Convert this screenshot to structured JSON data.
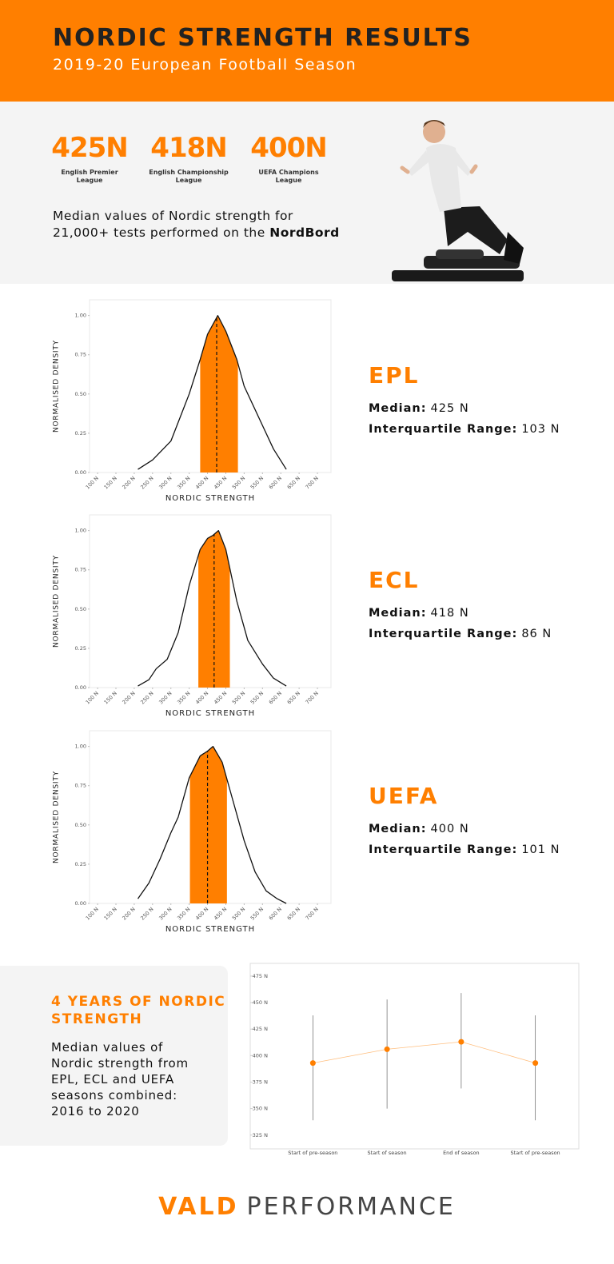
{
  "header": {
    "title": "NORDIC STRENGTH RESULTS",
    "subtitle": "2019-20 European Football Season"
  },
  "stats": [
    {
      "value": "425N",
      "label": "English Premier League"
    },
    {
      "value": "418N",
      "label": "English Championship League"
    },
    {
      "value": "400N",
      "label": "UEFA Champions League"
    }
  ],
  "description": {
    "text": "Median values of Nordic strength for 21,000+ tests performed on the",
    "bold": "NordBord"
  },
  "chart_data": [
    {
      "type": "density",
      "title": "EPL",
      "color": "#ff7f00",
      "x": [
        210,
        250,
        300,
        350,
        380,
        400,
        428,
        450,
        480,
        500,
        550,
        580,
        615
      ],
      "values": [
        0.02,
        0.08,
        0.2,
        0.5,
        0.72,
        0.88,
        1.0,
        0.9,
        0.72,
        0.55,
        0.3,
        0.15,
        0.02
      ],
      "median": 425,
      "q1": 380,
      "q3": 483,
      "median_label": "Median:",
      "median_text": "425 N",
      "iqr_label": "Interquartile Range:",
      "iqr_text": "103 N",
      "xlabel": "NORDIC STRENGTH",
      "ylabel": "NORMALISED DENSITY",
      "xlim": [
        78,
        737
      ],
      "ylim": [
        0,
        1.1
      ],
      "xticks": [
        {
          "value": 100,
          "label": "100 N"
        },
        {
          "value": 150,
          "label": "150 N"
        },
        {
          "value": 200,
          "label": "200 N"
        },
        {
          "value": 250,
          "label": "250 N"
        },
        {
          "value": 300,
          "label": "300 N"
        },
        {
          "value": 350,
          "label": "350 N"
        },
        {
          "value": 400,
          "label": "400 N"
        },
        {
          "value": 450,
          "label": "450 N"
        },
        {
          "value": 500,
          "label": "500 N"
        },
        {
          "value": 550,
          "label": "550 N"
        },
        {
          "value": 600,
          "label": "600 N"
        },
        {
          "value": 650,
          "label": "650 N"
        },
        {
          "value": 700,
          "label": "700 N"
        }
      ],
      "yticks": [
        {
          "value": 0,
          "label": "0.00"
        },
        0.25,
        {
          "value": 0.5,
          "label": "0.50"
        },
        0.75,
        {
          "value": 1,
          "label": "1.00"
        }
      ]
    },
    {
      "type": "density",
      "title": "ECL",
      "color": "#ff7f00",
      "x": [
        210,
        240,
        260,
        290,
        320,
        350,
        380,
        400,
        415,
        430,
        450,
        480,
        510,
        550,
        580,
        615
      ],
      "values": [
        0.01,
        0.05,
        0.12,
        0.18,
        0.35,
        0.65,
        0.88,
        0.95,
        0.97,
        1.0,
        0.88,
        0.55,
        0.3,
        0.15,
        0.06,
        0.01
      ],
      "median": 418,
      "q1": 375,
      "q3": 461,
      "median_label": "Median:",
      "median_text": "418 N",
      "iqr_label": "Interquartile Range:",
      "iqr_text": "86 N",
      "xlabel": "NORDIC STRENGTH",
      "ylabel": "NORMALISED DENSITY",
      "xlim": [
        78,
        737
      ],
      "ylim": [
        0,
        1.1
      ],
      "xticks": [
        {
          "value": 100,
          "label": "100 N"
        },
        {
          "value": 150,
          "label": "150 N"
        },
        {
          "value": 200,
          "label": "200 N"
        },
        {
          "value": 250,
          "label": "250 N"
        },
        {
          "value": 300,
          "label": "300 N"
        },
        {
          "value": 350,
          "label": "350 N"
        },
        {
          "value": 400,
          "label": "400 N"
        },
        {
          "value": 450,
          "label": "450 N"
        },
        {
          "value": 500,
          "label": "500 N"
        },
        {
          "value": 550,
          "label": "550 N"
        },
        {
          "value": 600,
          "label": "600 N"
        },
        {
          "value": 650,
          "label": "650 N"
        },
        {
          "value": 700,
          "label": "700 N"
        }
      ],
      "yticks": [
        {
          "value": 0,
          "label": "0.00"
        },
        0.25,
        {
          "value": 0.5,
          "label": "0.50"
        },
        0.75,
        {
          "value": 1,
          "label": "1.00"
        }
      ]
    },
    {
      "type": "density",
      "title": "UEFA",
      "color": "#ff7f00",
      "x": [
        210,
        240,
        270,
        300,
        320,
        350,
        380,
        400,
        415,
        440,
        470,
        500,
        530,
        560,
        590,
        615
      ],
      "values": [
        0.03,
        0.13,
        0.28,
        0.45,
        0.55,
        0.8,
        0.94,
        0.97,
        1.0,
        0.9,
        0.65,
        0.4,
        0.2,
        0.08,
        0.03,
        0.0
      ],
      "median": 400,
      "q1": 352,
      "q3": 453,
      "median_label": "Median:",
      "median_text": "400 N",
      "iqr_label": "Interquartile Range:",
      "iqr_text": "101 N",
      "xlabel": "NORDIC STRENGTH",
      "ylabel": "NORMALISED DENSITY",
      "xlim": [
        78,
        737
      ],
      "ylim": [
        0,
        1.1
      ],
      "xticks": [
        {
          "value": 100,
          "label": "100 N"
        },
        {
          "value": 150,
          "label": "150 N"
        },
        {
          "value": 200,
          "label": "200 N"
        },
        {
          "value": 250,
          "label": "250 N"
        },
        {
          "value": 300,
          "label": "300 N"
        },
        {
          "value": 350,
          "label": "350 N"
        },
        {
          "value": 400,
          "label": "400 N"
        },
        {
          "value": 450,
          "label": "450 N"
        },
        {
          "value": 500,
          "label": "500 N"
        },
        {
          "value": 550,
          "label": "550 N"
        },
        {
          "value": 600,
          "label": "600 N"
        },
        {
          "value": 650,
          "label": "650 N"
        },
        {
          "value": 700,
          "label": "700 N"
        }
      ],
      "yticks": [
        {
          "value": 0,
          "label": "0.00"
        },
        0.25,
        {
          "value": 0.5,
          "label": "0.50"
        },
        0.75,
        {
          "value": 1,
          "label": "1.00"
        }
      ]
    },
    {
      "type": "line",
      "title": "4 YEARS OF NORDIC STRENGTH",
      "description": "Median values of Nordic strength from EPL, ECL and UEFA seasons combined: 2016 to 2020",
      "color": "#ff7f00",
      "error_color": "#777777",
      "categories": [
        "Start of pre-season",
        "Start of season",
        "End of season",
        "Start of pre-season"
      ],
      "values": [
        393,
        406,
        413,
        393
      ],
      "low": [
        339,
        350,
        369,
        339
      ],
      "high": [
        438,
        453,
        459,
        438
      ],
      "ylim": [
        312,
        487
      ],
      "yticks": [
        {
          "value": 325,
          "label": "325 N"
        },
        {
          "value": 350,
          "label": "350 N"
        },
        {
          "value": 375,
          "label": "375 N"
        },
        {
          "value": 400,
          "label": "400 N"
        },
        {
          "value": 425,
          "label": "425 N"
        },
        {
          "value": 450,
          "label": "450 N"
        },
        {
          "value": 475,
          "label": "475 N"
        }
      ]
    }
  ],
  "footer": {
    "brand": "VALD",
    "text": "PERFORMANCE"
  }
}
